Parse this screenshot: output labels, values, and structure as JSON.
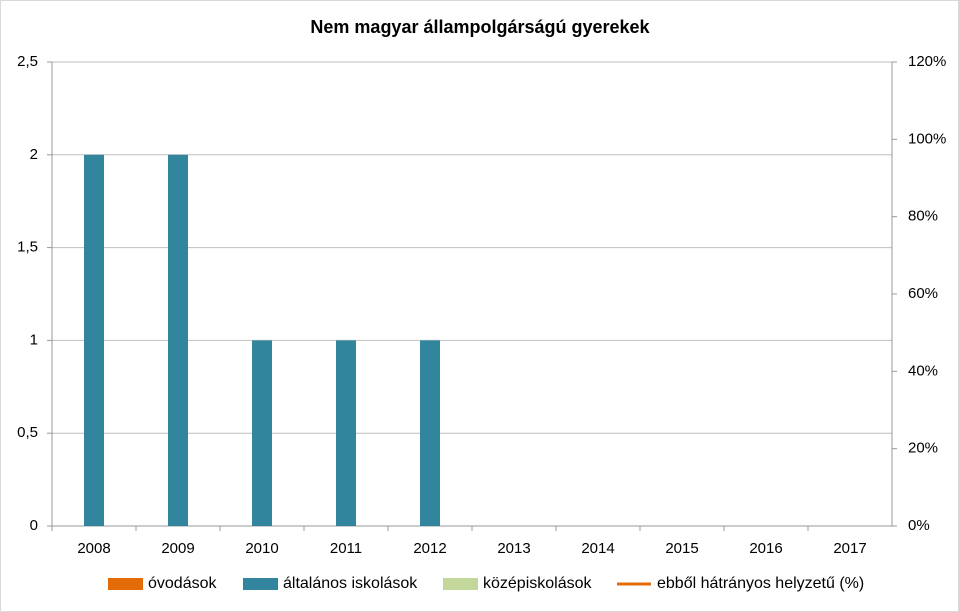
{
  "chart_data": {
    "type": "bar",
    "title": "Nem magyar állampolgárságú gyerekek",
    "categories": [
      "2008",
      "2009",
      "2010",
      "2011",
      "2012",
      "2013",
      "2014",
      "2015",
      "2016",
      "2017"
    ],
    "series": [
      {
        "name": "óvodások",
        "color": "#e36c09",
        "values": [
          0,
          0,
          0,
          0,
          0,
          0,
          0,
          0,
          0,
          0
        ]
      },
      {
        "name": "általános iskolások",
        "color": "#31859c",
        "values": [
          2,
          2,
          1,
          1,
          1,
          0,
          0,
          0,
          0,
          0
        ]
      },
      {
        "name": "középiskolások",
        "color": "#c3d69b",
        "values": [
          0,
          0,
          0,
          0,
          0,
          0,
          0,
          0,
          0,
          0
        ]
      },
      {
        "name": "ebből hátrányos helyzetű (%)",
        "color": "#e36c09",
        "type": "line",
        "axis": "y2",
        "values": [
          null,
          null,
          null,
          null,
          null,
          null,
          null,
          null,
          null,
          null
        ]
      }
    ],
    "ylim": [
      0,
      2.5
    ],
    "yticks": [
      0,
      {
        "value": 0.5,
        "label": "0,5"
      },
      1,
      {
        "value": 1.5,
        "label": "1,5"
      },
      2,
      {
        "value": 2.5,
        "label": "2,5"
      }
    ],
    "y2lim": [
      0,
      120
    ],
    "y2ticks": [
      {
        "value": 0,
        "label": "0%"
      },
      {
        "value": 20,
        "label": "20%"
      },
      {
        "value": 40,
        "label": "40%"
      },
      {
        "value": 60,
        "label": "60%"
      },
      {
        "value": 80,
        "label": "80%"
      },
      {
        "value": 100,
        "label": "100%"
      },
      {
        "value": 120,
        "label": "120%"
      }
    ],
    "grid": true
  }
}
